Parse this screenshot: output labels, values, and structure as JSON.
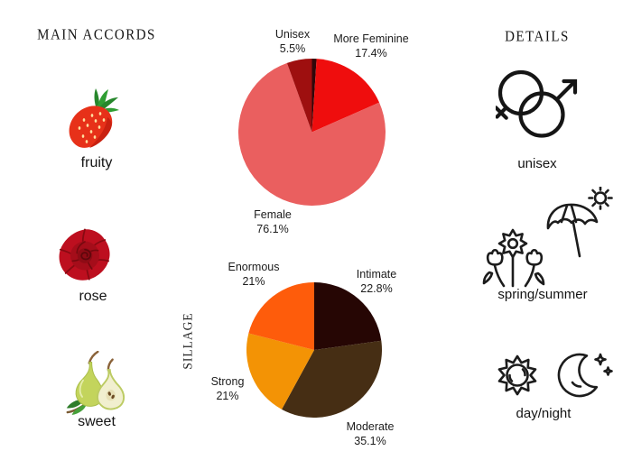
{
  "accords": {
    "title": "MAIN ACCORDS",
    "items": [
      {
        "name": "fruity",
        "icon": "strawberry-illustration"
      },
      {
        "name": "rose",
        "icon": "rose-illustration"
      },
      {
        "name": "sweet",
        "icon": "pear-illustration"
      }
    ]
  },
  "details": {
    "title": "DETAILS",
    "items": [
      {
        "label": "unisex",
        "icon": "unisex-gender-icon"
      },
      {
        "label": "spring/summer",
        "icon": "spring-summer-icon"
      },
      {
        "label": "day/night",
        "icon": "day-night-icon"
      }
    ]
  },
  "chart_data": [
    {
      "type": "pie",
      "name": "gender-distribution",
      "start_angle": "12-oclock",
      "direction": "clockwise",
      "legend_position": "none",
      "slices": [
        {
          "label": "",
          "display": "",
          "value": 1.0,
          "color": "#30070a"
        },
        {
          "label": "More Feminine",
          "display": "17.4%",
          "value": 17.4,
          "color": "#ef0d0d"
        },
        {
          "label": "Female",
          "display": "76.1%",
          "value": 76.1,
          "color": "#ea5f5f"
        },
        {
          "label": "Unisex",
          "display": "5.5%",
          "value": 5.5,
          "color": "#9e0f0f"
        }
      ]
    },
    {
      "type": "pie",
      "name": "sillage-distribution",
      "axis_label": "SILLAGE",
      "start_angle": "12-oclock",
      "direction": "clockwise",
      "legend_position": "none",
      "slices": [
        {
          "label": "Intimate",
          "display": "22.8%",
          "value": 22.8,
          "color": "#260604"
        },
        {
          "label": "Moderate",
          "display": "35.1%",
          "value": 35.1,
          "color": "#462e14"
        },
        {
          "label": "Strong",
          "display": "21%",
          "value": 21.0,
          "color": "#f39305"
        },
        {
          "label": "Enormous",
          "display": "21%",
          "value": 21.0,
          "color": "#fe5c0b"
        }
      ]
    }
  ]
}
